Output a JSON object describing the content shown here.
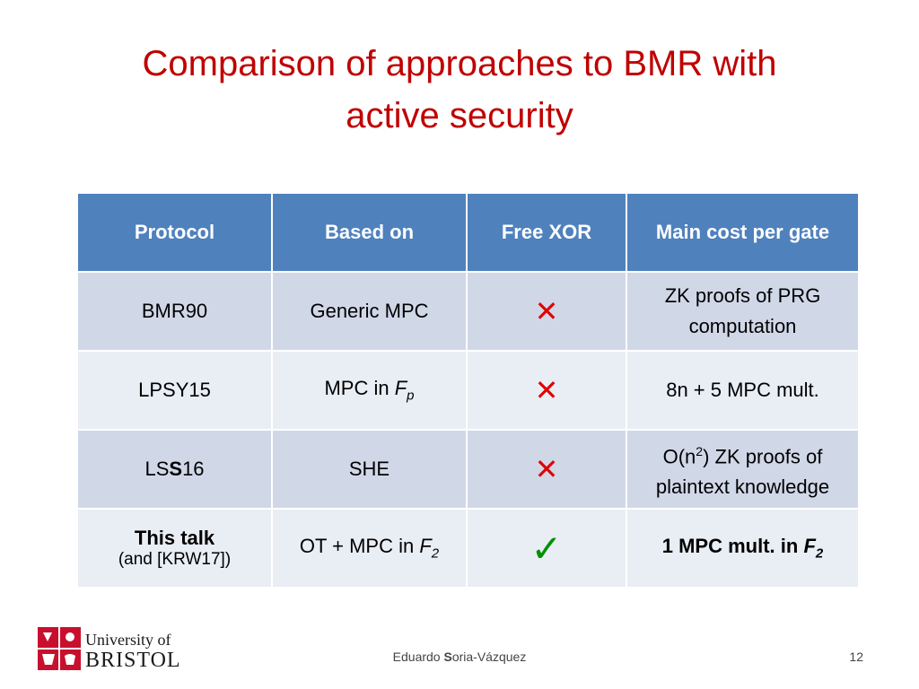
{
  "slide": {
    "title_line1": "Comparison of approaches to BMR with",
    "title_line2": "active security"
  },
  "table": {
    "headers": [
      "Protocol",
      "Based on",
      "Free XOR",
      "Main cost per gate"
    ],
    "rows": [
      {
        "protocol": "BMR90",
        "based_on": "Generic MPC",
        "free_xor": "✕",
        "cost_line1": "ZK proofs of PRG",
        "cost_line2": "computation"
      },
      {
        "protocol": "LPSY15",
        "based_on_prefix": "MPC in ",
        "based_on_field": "F",
        "based_on_sub": "p",
        "free_xor": "✕",
        "cost": "8n + 5 MPC mult."
      },
      {
        "protocol_prefix": "LS",
        "protocol_bold": "S",
        "protocol_suffix": "16",
        "based_on": "SHE",
        "free_xor": "✕",
        "cost_prefix": "O(n",
        "cost_sup": "2",
        "cost_suffix": ") ZK proofs of",
        "cost_line2": "plaintext knowledge"
      },
      {
        "protocol": "This talk",
        "protocol_note": "(and [KRW17])",
        "based_on_prefix": "OT + MPC in ",
        "based_on_field": "F",
        "based_on_sub": "2",
        "free_xor": "✓",
        "cost_prefix": "1 MPC mult. in ",
        "cost_field": "F",
        "cost_sub": "2"
      }
    ]
  },
  "footer": {
    "logo_line1": "University of",
    "logo_line2": "BRISTOL",
    "author_prefix": "Eduardo ",
    "author_bold": "S",
    "author_suffix": "oria-Vázquez",
    "page_number": "12"
  },
  "colors": {
    "title": "#c00000",
    "header_bg": "#4f81bd",
    "row_odd": "#d0d8e8",
    "row_even": "#e9edf4",
    "cross": "#e00000",
    "check": "#009000"
  },
  "icons": {
    "cross": "cross-icon",
    "check": "check-icon",
    "logo": "university-crest-icon"
  }
}
